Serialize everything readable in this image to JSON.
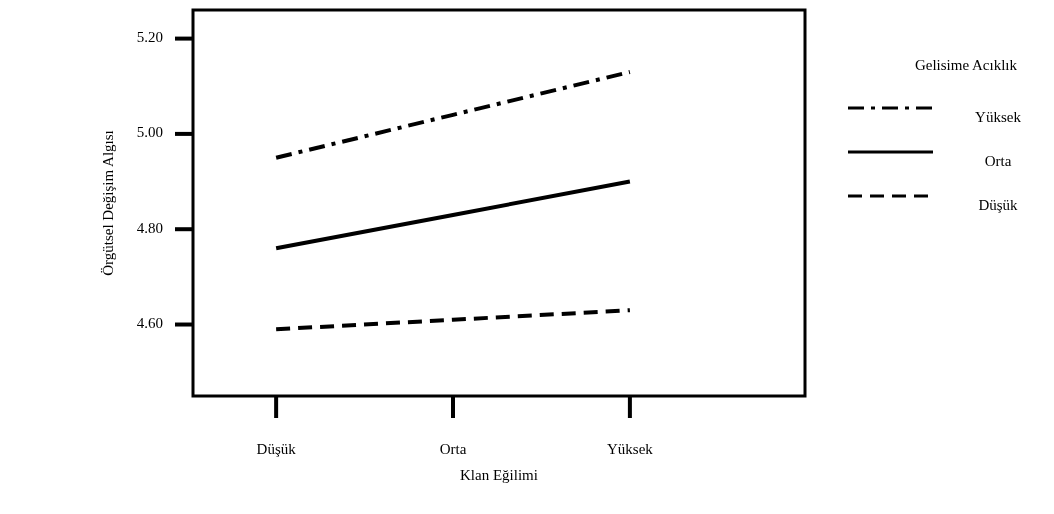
{
  "chart_data": {
    "type": "line",
    "xlabel": "Klan Eğilimi",
    "ylabel": "Örgütsel Değişim Algısı",
    "legend_title": "Gelisime Acıklık",
    "categories": [
      "Düşük",
      "Orta",
      "Yüksek"
    ],
    "series": [
      {
        "name": "Yüksek",
        "color": "#000000",
        "line_style": "dashdot",
        "values": [
          4.95,
          5.04,
          5.13
        ]
      },
      {
        "name": "Orta",
        "color": "#000000",
        "line_style": "solid",
        "values": [
          4.76,
          4.83,
          4.9
        ]
      },
      {
        "name": "Düşük",
        "color": "#000000",
        "line_style": "dashed",
        "values": [
          4.59,
          4.61,
          4.63
        ]
      }
    ],
    "ylim": [
      4.45,
      5.26
    ],
    "yticks": [
      {
        "value": 4.6,
        "label": "4.60"
      },
      {
        "value": 4.8,
        "label": "4.80"
      },
      {
        "value": 5.0,
        "label": "5.00"
      },
      {
        "value": 5.2,
        "label": "5.20"
      }
    ],
    "grid": false,
    "legend": "right",
    "marker": "none"
  }
}
